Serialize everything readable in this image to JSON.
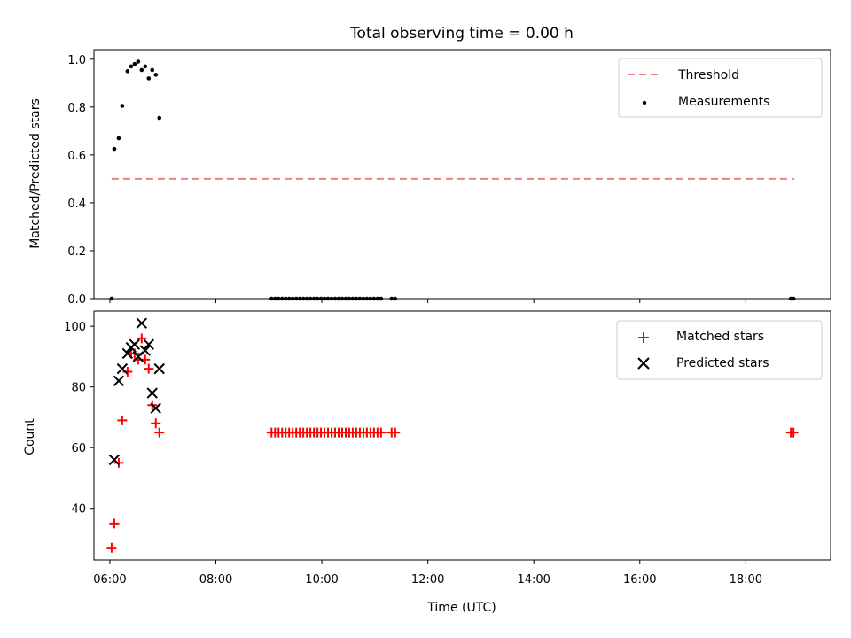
{
  "chart_data": {
    "type": "scatter",
    "title": "Total observing time = 0.00 h",
    "xlabel": "Time (UTC)",
    "x_range": [
      "05:42",
      "19:36"
    ],
    "x_ticks": [
      "06:00",
      "08:00",
      "10:00",
      "12:00",
      "14:00",
      "16:00",
      "18:00"
    ],
    "panels": [
      {
        "ylabel": "Matched/Predicted stars",
        "ylim": [
          0,
          1.04
        ],
        "yticks": [
          "0.0",
          "0.2",
          "0.4",
          "0.6",
          "0.8",
          "1.0"
        ],
        "legend_position": "upper right",
        "series": [
          {
            "name": "Threshold",
            "kind": "line",
            "style": "dashed",
            "color": "#f08080",
            "points": [
              [
                "06:02",
                0.5
              ],
              [
                "18:55",
                0.5
              ]
            ]
          },
          {
            "name": "Measurements",
            "kind": "scatter",
            "marker": "dot",
            "color": "#000000",
            "points": [
              [
                "06:02",
                0.0
              ],
              [
                "06:05",
                0.625
              ],
              [
                "06:10",
                0.67
              ],
              [
                "06:14",
                0.805
              ],
              [
                "06:20",
                0.95
              ],
              [
                "06:24",
                0.97
              ],
              [
                "06:28",
                0.98
              ],
              [
                "06:32",
                0.99
              ],
              [
                "06:36",
                0.955
              ],
              [
                "06:40",
                0.97
              ],
              [
                "06:44",
                0.92
              ],
              [
                "06:48",
                0.955
              ],
              [
                "06:52",
                0.935
              ],
              [
                "06:56",
                0.755
              ],
              [
                "09:03",
                0.0
              ],
              [
                "09:07",
                0.0
              ],
              [
                "09:11",
                0.0
              ],
              [
                "09:15",
                0.0
              ],
              [
                "09:19",
                0.0
              ],
              [
                "09:23",
                0.0
              ],
              [
                "09:27",
                0.0
              ],
              [
                "09:31",
                0.0
              ],
              [
                "09:35",
                0.0
              ],
              [
                "09:39",
                0.0
              ],
              [
                "09:43",
                0.0
              ],
              [
                "09:47",
                0.0
              ],
              [
                "09:51",
                0.0
              ],
              [
                "09:55",
                0.0
              ],
              [
                "09:59",
                0.0
              ],
              [
                "10:03",
                0.0
              ],
              [
                "10:07",
                0.0
              ],
              [
                "10:11",
                0.0
              ],
              [
                "10:15",
                0.0
              ],
              [
                "10:19",
                0.0
              ],
              [
                "10:23",
                0.0
              ],
              [
                "10:27",
                0.0
              ],
              [
                "10:31",
                0.0
              ],
              [
                "10:35",
                0.0
              ],
              [
                "10:39",
                0.0
              ],
              [
                "10:43",
                0.0
              ],
              [
                "10:47",
                0.0
              ],
              [
                "10:51",
                0.0
              ],
              [
                "10:55",
                0.0
              ],
              [
                "10:59",
                0.0
              ],
              [
                "11:03",
                0.0
              ],
              [
                "11:07",
                0.0
              ],
              [
                "11:19",
                0.0
              ],
              [
                "11:23",
                0.0
              ],
              [
                "18:51",
                0.0
              ],
              [
                "18:54",
                0.0
              ]
            ]
          }
        ]
      },
      {
        "ylabel": "Count",
        "ylim": [
          23,
          105
        ],
        "yticks": [
          "40",
          "60",
          "80",
          "100"
        ],
        "legend_position": "upper right",
        "series": [
          {
            "name": "Matched stars",
            "kind": "scatter",
            "marker": "plus",
            "color": "#ff0000",
            "points": [
              [
                "06:02",
                27
              ],
              [
                "06:05",
                35
              ],
              [
                "06:10",
                55
              ],
              [
                "06:14",
                69
              ],
              [
                "06:20",
                85
              ],
              [
                "06:24",
                91
              ],
              [
                "06:28",
                91
              ],
              [
                "06:32",
                89
              ],
              [
                "06:36",
                96
              ],
              [
                "06:40",
                89
              ],
              [
                "06:44",
                86
              ],
              [
                "06:48",
                74
              ],
              [
                "06:52",
                68
              ],
              [
                "06:56",
                65
              ],
              [
                "09:03",
                65
              ],
              [
                "09:07",
                65
              ],
              [
                "09:11",
                65
              ],
              [
                "09:15",
                65
              ],
              [
                "09:19",
                65
              ],
              [
                "09:23",
                65
              ],
              [
                "09:27",
                65
              ],
              [
                "09:31",
                65
              ],
              [
                "09:35",
                65
              ],
              [
                "09:39",
                65
              ],
              [
                "09:43",
                65
              ],
              [
                "09:47",
                65
              ],
              [
                "09:51",
                65
              ],
              [
                "09:55",
                65
              ],
              [
                "09:59",
                65
              ],
              [
                "10:03",
                65
              ],
              [
                "10:07",
                65
              ],
              [
                "10:11",
                65
              ],
              [
                "10:15",
                65
              ],
              [
                "10:19",
                65
              ],
              [
                "10:23",
                65
              ],
              [
                "10:27",
                65
              ],
              [
                "10:31",
                65
              ],
              [
                "10:35",
                65
              ],
              [
                "10:39",
                65
              ],
              [
                "10:43",
                65
              ],
              [
                "10:47",
                65
              ],
              [
                "10:51",
                65
              ],
              [
                "10:55",
                65
              ],
              [
                "10:59",
                65
              ],
              [
                "11:03",
                65
              ],
              [
                "11:07",
                65
              ],
              [
                "11:19",
                65
              ],
              [
                "11:23",
                65
              ],
              [
                "18:51",
                65
              ],
              [
                "18:54",
                65
              ]
            ]
          },
          {
            "name": "Predicted stars",
            "kind": "scatter",
            "marker": "x",
            "color": "#000000",
            "points": [
              [
                "06:05",
                56
              ],
              [
                "06:10",
                82
              ],
              [
                "06:14",
                86
              ],
              [
                "06:20",
                91
              ],
              [
                "06:24",
                93
              ],
              [
                "06:28",
                94
              ],
              [
                "06:32",
                90
              ],
              [
                "06:36",
                101
              ],
              [
                "06:40",
                92
              ],
              [
                "06:44",
                94
              ],
              [
                "06:48",
                78
              ],
              [
                "06:52",
                73
              ],
              [
                "06:56",
                86
              ]
            ]
          }
        ]
      }
    ]
  }
}
